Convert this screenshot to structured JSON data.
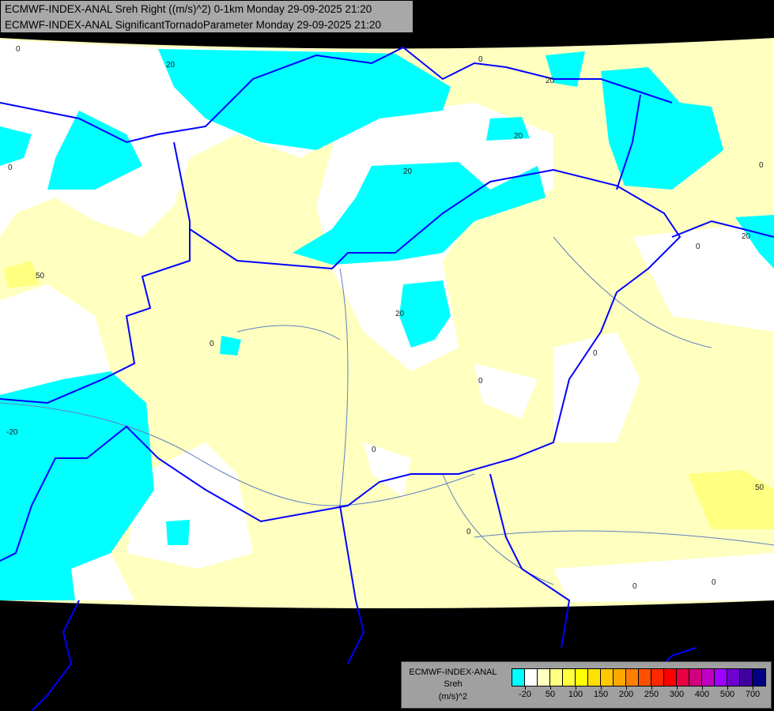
{
  "header": {
    "line1": "ECMWF-INDEX-ANAL Sreh Right ((m/s)^2) 0-1km Monday 29-09-2025 21:20",
    "line2": "ECMWF-INDEX-ANAL SignificantTornadoParameter Monday 29-09-2025 21:20"
  },
  "legend": {
    "source": "ECMWF-INDEX-ANAL",
    "parameter": "Sreh",
    "unit": "(m/s)^2",
    "colors": [
      "#00ffff",
      "#ffffff",
      "#ffffc0",
      "#ffff80",
      "#ffff40",
      "#ffff00",
      "#ffe000",
      "#ffc800",
      "#ffa800",
      "#ff8000",
      "#ff5000",
      "#ff2800",
      "#ff0000",
      "#e80040",
      "#d00080",
      "#c000c0",
      "#a000ff",
      "#7000d0",
      "#4000a0",
      "#000080"
    ],
    "tick_labels": [
      "-20",
      "50",
      "100",
      "150",
      "200",
      "250",
      "300",
      "400",
      "500",
      "700"
    ]
  },
  "map": {
    "colors": {
      "no_data": "#000000",
      "negative": "#00ffff",
      "neutral": "#ffffff",
      "low_positive": "#ffffc0",
      "medium_positive": "#ffff80",
      "borders": "#0000ff",
      "rivers": "#6080c0"
    },
    "contour_labels": [
      "0",
      "20",
      "-20",
      "50"
    ]
  }
}
